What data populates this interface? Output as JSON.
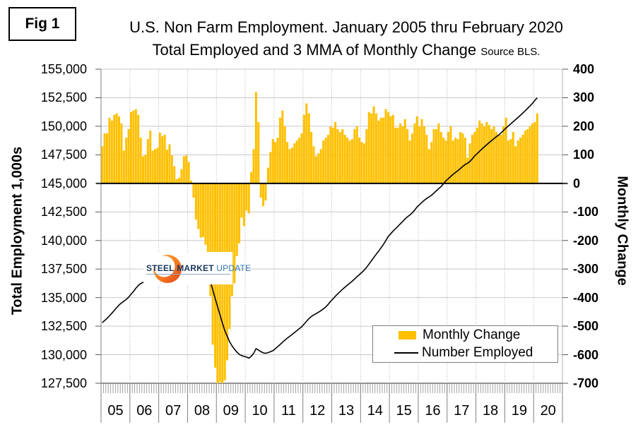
{
  "fig_label": "Fig 1",
  "title": {
    "line1": "U.S. Non Farm Employment. January 2005 thru February 2020",
    "line2": "Total Employed and 3 MMA of Monthly Change",
    "source": "Source BLS."
  },
  "axes": {
    "left_label": "Total Employment 1,000s",
    "right_label": "Monthly Change",
    "left_ticks": [
      "155,000",
      "152,500",
      "150,000",
      "147,500",
      "145,000",
      "142,500",
      "140,000",
      "137,500",
      "135,000",
      "132,500",
      "130,000",
      "127,500"
    ],
    "right_ticks": [
      "400",
      "300",
      "200",
      "100",
      "0",
      "-100",
      "-200",
      "-300",
      "-400",
      "-500",
      "-600",
      "-700"
    ],
    "x_ticks": [
      "05",
      "06",
      "07",
      "08",
      "09",
      "10",
      "11",
      "12",
      "13",
      "14",
      "15",
      "16",
      "17",
      "18",
      "19",
      "20"
    ]
  },
  "legend": {
    "monthly_change": "Monthly Change",
    "number_employed": "Number Employed"
  },
  "watermark": {
    "steel": "STEEL",
    "market": "MARKET",
    "update": "UPDATE"
  },
  "colors": {
    "bar": "#ffc000",
    "line": "#000000",
    "gridline": "#c8c8c8",
    "dotted_gridline": "#b0b0b0",
    "axis": "#808080",
    "zero_line": "#000000",
    "logo_orange_outer": "#e2401b",
    "logo_orange_inner": "#fbb040",
    "logo_navy": "#17375e",
    "logo_blue": "#2e74b5"
  },
  "chart_data": {
    "type": "bar+line",
    "x_monthly_from": "2005-01",
    "x_monthly_to": "2020-02",
    "left_axis": {
      "label": "Total Employment 1,000s",
      "min": 127500,
      "max": 155000,
      "step": 2500
    },
    "right_axis": {
      "label": "Monthly Change",
      "min": -700,
      "max": 400,
      "step": 100
    },
    "legend_position": "inside lower right",
    "grid": true,
    "series": [
      {
        "name": "Monthly Change",
        "type": "bar",
        "axis": "right",
        "values": [
          130,
          175,
          175,
          230,
          220,
          240,
          245,
          235,
          210,
          115,
          160,
          190,
          250,
          255,
          260,
          240,
          160,
          95,
          100,
          155,
          185,
          115,
          120,
          125,
          178,
          165,
          170,
          118,
          137,
          98,
          60,
          15,
          20,
          50,
          95,
          98,
          75,
          10,
          -50,
          -127,
          -160,
          -190,
          -188,
          -215,
          -307,
          -395,
          -565,
          -645,
          -700,
          -695,
          -700,
          -690,
          -620,
          -510,
          -395,
          -350,
          -255,
          -210,
          -120,
          -150,
          -95,
          -105,
          40,
          120,
          320,
          215,
          -50,
          -80,
          -60,
          55,
          110,
          155,
          145,
          160,
          230,
          255,
          200,
          145,
          120,
          125,
          140,
          150,
          160,
          175,
          240,
          280,
          245,
          180,
          130,
          95,
          105,
          120,
          150,
          160,
          170,
          200,
          195,
          215,
          190,
          180,
          190,
          170,
          160,
          150,
          155,
          190,
          200,
          160,
          145,
          140,
          190,
          250,
          245,
          270,
          245,
          220,
          230,
          230,
          260,
          250,
          235,
          240,
          195,
          195,
          210,
          200,
          225,
          190,
          150,
          175,
          210,
          235,
          200,
          225,
          200,
          170,
          120,
          145,
          190,
          190,
          210,
          180,
          160,
          150,
          180,
          200,
          150,
          160,
          155,
          180,
          175,
          160,
          90,
          140,
          170,
          180,
          195,
          220,
          210,
          200,
          215,
          205,
          190,
          200,
          180,
          170,
          170,
          200,
          230,
          150,
          155,
          180,
          130,
          150,
          160,
          170,
          185,
          190,
          200,
          210,
          215,
          245
        ]
      },
      {
        "name": "Number Employed",
        "type": "line",
        "axis": "left",
        "values": [
          132800,
          132990,
          133180,
          133400,
          133630,
          133870,
          134120,
          134350,
          134540,
          134680,
          134840,
          135040,
          135290,
          135540,
          135820,
          136060,
          136230,
          136330,
          136440,
          136590,
          136760,
          136880,
          136990,
          137110,
          137280,
          137430,
          137600,
          137720,
          137850,
          137950,
          138010,
          138020,
          138040,
          138090,
          138190,
          138290,
          138390,
          138400,
          138330,
          138180,
          137990,
          137790,
          137580,
          137310,
          136910,
          136400,
          135680,
          134930,
          134180,
          133480,
          132760,
          132100,
          131610,
          131130,
          130770,
          130480,
          130230,
          130030,
          129920,
          129850,
          129790,
          129700,
          129860,
          130120,
          130530,
          130400,
          130270,
          130160,
          130120,
          130180,
          130260,
          130350,
          130520,
          130700,
          130890,
          131090,
          131280,
          131450,
          131610,
          131770,
          131940,
          132110,
          132280,
          132450,
          132680,
          132930,
          133160,
          133340,
          133480,
          133600,
          133720,
          133850,
          134010,
          134180,
          134400,
          134670,
          134880,
          135120,
          135330,
          135530,
          135730,
          135910,
          136090,
          136260,
          136430,
          136630,
          136830,
          137010,
          137200,
          137400,
          137650,
          137930,
          138220,
          138510,
          138790,
          139070,
          139350,
          139650,
          139990,
          140350,
          140580,
          140810,
          141020,
          141230,
          141450,
          141660,
          141880,
          142070,
          142230,
          142420,
          142660,
          142930,
          143130,
          143330,
          143520,
          143680,
          143810,
          143960,
          144150,
          144340,
          144540,
          144720,
          144960,
          145220,
          145410,
          145610,
          145790,
          145960,
          146120,
          146300,
          146480,
          146650,
          146760,
          146930,
          147150,
          147410,
          147600,
          147810,
          148010,
          148200,
          148390,
          148570,
          148740,
          148920,
          149090,
          149240,
          149430,
          149640,
          149840,
          150030,
          150210,
          150400,
          150580,
          150770,
          150960,
          151160,
          151360,
          151570,
          151780,
          152000,
          152260,
          152500
        ]
      }
    ]
  }
}
